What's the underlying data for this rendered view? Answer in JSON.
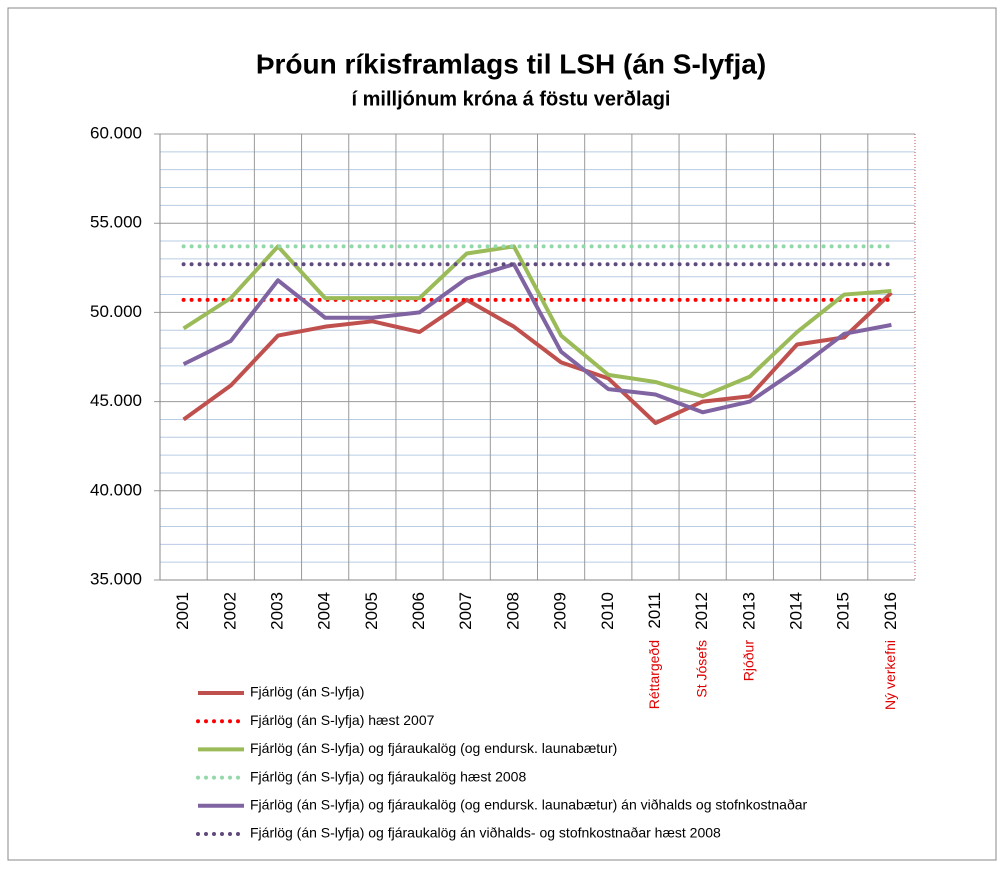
{
  "chart_data": {
    "type": "line",
    "title": "Þróun ríkisframlags til LSH (án S-lyfja)",
    "subtitle": "í milljónum króna á föstu verðlagi",
    "categories": [
      "2001",
      "2002",
      "2003",
      "2004",
      "2005",
      "2006",
      "2007",
      "2008",
      "2009",
      "2010",
      "2011",
      "2012",
      "2013",
      "2014",
      "2015",
      "2016"
    ],
    "annotations": [
      null,
      null,
      null,
      null,
      null,
      null,
      null,
      null,
      null,
      null,
      "Réttargeðd",
      "St Jósefs",
      "Rjóður",
      null,
      null,
      "Ný verkefni"
    ],
    "annotation_color": "#e00000",
    "ylim": [
      35000,
      60000
    ],
    "yticks": [
      {
        "value": 35000,
        "label": "35.000"
      },
      {
        "value": 40000,
        "label": "40.000"
      },
      {
        "value": 45000,
        "label": "45.000"
      },
      {
        "value": 50000,
        "label": "50.000"
      },
      {
        "value": 55000,
        "label": "55.000"
      },
      {
        "value": 60000,
        "label": "60.000"
      }
    ],
    "grid": true,
    "legend": "bottom",
    "series": [
      {
        "name": "Fjárlög (án S-lyfja)",
        "color": "#c0504d",
        "style": "solid",
        "values": [
          44000,
          45900,
          48700,
          49200,
          49500,
          48900,
          50700,
          49200,
          47200,
          46300,
          43800,
          45000,
          45300,
          48200,
          48600,
          51100
        ]
      },
      {
        "name": "Fjárlög (án S-lyfja) hæst 2007",
        "color": "#ff0000",
        "style": "dotted",
        "values": [
          50700,
          50700,
          50700,
          50700,
          50700,
          50700,
          50700,
          50700,
          50700,
          50700,
          50700,
          50700,
          50700,
          50700,
          50700,
          50700
        ]
      },
      {
        "name": "Fjárlög (án S-lyfja) og fjáraukalög (og endursk. launabætur)",
        "color": "#9bbb59",
        "style": "solid",
        "values": [
          49100,
          50800,
          53700,
          50800,
          50800,
          50800,
          53300,
          53700,
          48700,
          46500,
          46100,
          45300,
          46400,
          48900,
          51000,
          51200
        ]
      },
      {
        "name": "Fjárlög (án S-lyfja) og fjáraukalög hæst 2008",
        "color": "#92d8a8",
        "style": "dotted",
        "values": [
          53700,
          53700,
          53700,
          53700,
          53700,
          53700,
          53700,
          53700,
          53700,
          53700,
          53700,
          53700,
          53700,
          53700,
          53700,
          53700
        ]
      },
      {
        "name": "Fjárlög (án S-lyfja) og fjáraukalög (og endursk. launabætur) án viðhalds og stofnkostnaðar",
        "color": "#8064a2",
        "style": "solid",
        "values": [
          47100,
          48400,
          51800,
          49700,
          49700,
          50000,
          51900,
          52700,
          47800,
          45700,
          45400,
          44400,
          45000,
          46800,
          48800,
          49300
        ]
      },
      {
        "name": "Fjárlög (án S-lyfja) og fjáraukalög án viðhalds- og stofnkostnaðar hæst 2008",
        "color": "#604a7b",
        "style": "dotted",
        "values": [
          52700,
          52700,
          52700,
          52700,
          52700,
          52700,
          52700,
          52700,
          52700,
          52700,
          52700,
          52700,
          52700,
          52700,
          52700,
          52700
        ]
      }
    ]
  }
}
